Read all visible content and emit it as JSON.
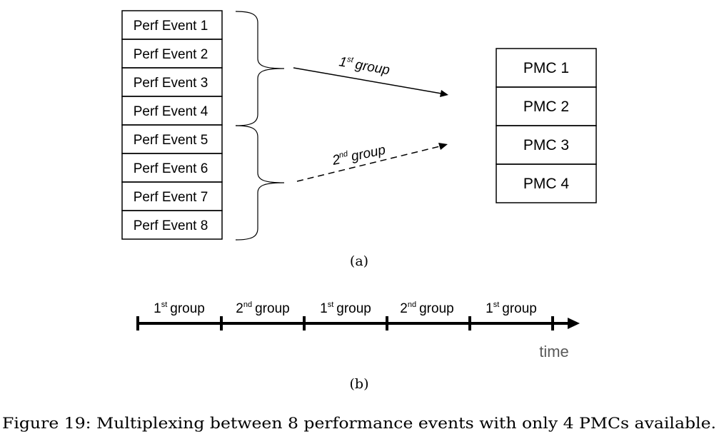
{
  "events": [
    "Perf Event 1",
    "Perf Event 2",
    "Perf Event 3",
    "Perf Event 4",
    "Perf Event 5",
    "Perf Event 6",
    "Perf Event 7",
    "Perf Event 8"
  ],
  "pmcs": [
    "PMC 1",
    "PMC 2",
    "PMC 3",
    "PMC 4"
  ],
  "arrows": {
    "first": {
      "num": "1",
      "sup": "st",
      "word": "group"
    },
    "second": {
      "num": "2",
      "sup": "nd",
      "word": "group"
    }
  },
  "subfig_a": "(a)",
  "timeline": {
    "segments": [
      {
        "num": "1",
        "sup": "st",
        "word": "group"
      },
      {
        "num": "2",
        "sup": "nd",
        "word": "group"
      },
      {
        "num": "1",
        "sup": "st",
        "word": "group"
      },
      {
        "num": "2",
        "sup": "nd",
        "word": "group"
      },
      {
        "num": "1",
        "sup": "st",
        "word": "group"
      }
    ],
    "axis_label": "time"
  },
  "subfig_b": "(b)",
  "caption": "Figure 19: Multiplexing between 8 performance events with only 4 PMCs available."
}
